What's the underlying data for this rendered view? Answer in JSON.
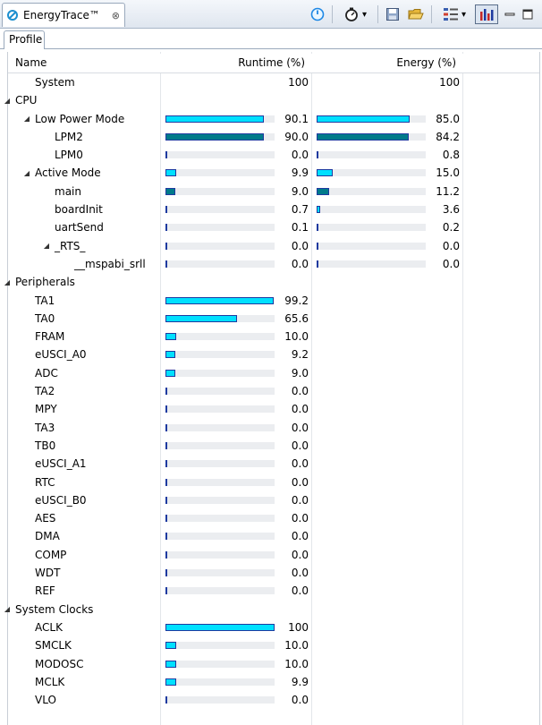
{
  "view": {
    "title": "EnergyTrace™",
    "close_glyph": "⊗",
    "subtab": "Profile"
  },
  "toolbar": {
    "icons": [
      "power-icon",
      "stopwatch-icon",
      "save-icon",
      "open-folder-icon",
      "layout-icon",
      "chart-toggle-icon",
      "minimize-icon",
      "maximize-icon"
    ],
    "dropdown_glyph": "▾"
  },
  "columns": {
    "name": "Name",
    "runtime": "Runtime (%)",
    "energy": "Energy (%)"
  },
  "rows": [
    {
      "name": "System",
      "indent": 1,
      "twisty": "",
      "runtime": "100",
      "runtime_bar": null,
      "energy": "100",
      "energy_bar": null
    },
    {
      "name": "CPU",
      "indent": 0,
      "twisty": "◢",
      "runtime": "",
      "runtime_bar": null,
      "energy": "",
      "energy_bar": null
    },
    {
      "name": "Low Power Mode",
      "indent": 1,
      "twisty": "◢",
      "runtime": "90.1",
      "runtime_bar": 0.901,
      "runtime_dark": false,
      "energy": "85.0",
      "energy_bar": 0.85,
      "energy_dark": false
    },
    {
      "name": "LPM2",
      "indent": 2,
      "twisty": "",
      "runtime": "90.0",
      "runtime_bar": 0.9,
      "runtime_dark": true,
      "energy": "84.2",
      "energy_bar": 0.842,
      "energy_dark": true
    },
    {
      "name": "LPM0",
      "indent": 2,
      "twisty": "",
      "runtime": "0.0",
      "runtime_bar": 0.0,
      "runtime_dark": false,
      "energy": "0.8",
      "energy_bar": 0.008,
      "energy_dark": false
    },
    {
      "name": "Active Mode",
      "indent": 1,
      "twisty": "◢",
      "runtime": "9.9",
      "runtime_bar": 0.099,
      "runtime_dark": false,
      "energy": "15.0",
      "energy_bar": 0.15,
      "energy_dark": false
    },
    {
      "name": "main",
      "indent": 2,
      "twisty": "",
      "runtime": "9.0",
      "runtime_bar": 0.09,
      "runtime_dark": true,
      "energy": "11.2",
      "energy_bar": 0.112,
      "energy_dark": true
    },
    {
      "name": "boardInit",
      "indent": 2,
      "twisty": "",
      "runtime": "0.7",
      "runtime_bar": 0.007,
      "runtime_dark": false,
      "energy": "3.6",
      "energy_bar": 0.036,
      "energy_dark": false
    },
    {
      "name": "uartSend",
      "indent": 2,
      "twisty": "",
      "runtime": "0.1",
      "runtime_bar": 0.001,
      "runtime_dark": false,
      "energy": "0.2",
      "energy_bar": 0.002,
      "energy_dark": false
    },
    {
      "name": "_RTS_",
      "indent": 2,
      "twisty": "◢",
      "twisty_first": true,
      "runtime": "0.0",
      "runtime_bar": 0.0,
      "runtime_dark": false,
      "energy": "0.0",
      "energy_bar": 0.0,
      "energy_dark": false
    },
    {
      "name": "__mspabi_srll",
      "indent": 3,
      "twisty": "",
      "runtime": "0.0",
      "runtime_bar": 0.0,
      "runtime_dark": false,
      "energy": "0.0",
      "energy_bar": 0.0,
      "energy_dark": false
    },
    {
      "name": "Peripherals",
      "indent": 0,
      "twisty": "◢",
      "runtime": "",
      "runtime_bar": null,
      "energy": "",
      "energy_bar": null
    },
    {
      "name": "TA1",
      "indent": 1,
      "twisty": "",
      "runtime": "99.2",
      "runtime_bar": 0.992,
      "runtime_dark": false,
      "energy": "",
      "energy_bar": null
    },
    {
      "name": "TA0",
      "indent": 1,
      "twisty": "",
      "runtime": "65.6",
      "runtime_bar": 0.656,
      "runtime_dark": false,
      "energy": "",
      "energy_bar": null
    },
    {
      "name": "FRAM",
      "indent": 1,
      "twisty": "",
      "runtime": "10.0",
      "runtime_bar": 0.1,
      "runtime_dark": false,
      "energy": "",
      "energy_bar": null
    },
    {
      "name": "eUSCI_A0",
      "indent": 1,
      "twisty": "",
      "runtime": "9.2",
      "runtime_bar": 0.092,
      "runtime_dark": false,
      "energy": "",
      "energy_bar": null
    },
    {
      "name": "ADC",
      "indent": 1,
      "twisty": "",
      "runtime": "9.0",
      "runtime_bar": 0.09,
      "runtime_dark": false,
      "energy": "",
      "energy_bar": null
    },
    {
      "name": "TA2",
      "indent": 1,
      "twisty": "",
      "runtime": "0.0",
      "runtime_bar": 0.0,
      "runtime_dark": false,
      "energy": "",
      "energy_bar": null
    },
    {
      "name": "MPY",
      "indent": 1,
      "twisty": "",
      "runtime": "0.0",
      "runtime_bar": 0.0,
      "runtime_dark": false,
      "energy": "",
      "energy_bar": null
    },
    {
      "name": "TA3",
      "indent": 1,
      "twisty": "",
      "runtime": "0.0",
      "runtime_bar": 0.0,
      "runtime_dark": false,
      "energy": "",
      "energy_bar": null
    },
    {
      "name": "TB0",
      "indent": 1,
      "twisty": "",
      "runtime": "0.0",
      "runtime_bar": 0.0,
      "runtime_dark": false,
      "energy": "",
      "energy_bar": null
    },
    {
      "name": "eUSCI_A1",
      "indent": 1,
      "twisty": "",
      "runtime": "0.0",
      "runtime_bar": 0.0,
      "runtime_dark": false,
      "energy": "",
      "energy_bar": null
    },
    {
      "name": "RTC",
      "indent": 1,
      "twisty": "",
      "runtime": "0.0",
      "runtime_bar": 0.0,
      "runtime_dark": false,
      "energy": "",
      "energy_bar": null
    },
    {
      "name": "eUSCI_B0",
      "indent": 1,
      "twisty": "",
      "runtime": "0.0",
      "runtime_bar": 0.0,
      "runtime_dark": false,
      "energy": "",
      "energy_bar": null
    },
    {
      "name": "AES",
      "indent": 1,
      "twisty": "",
      "runtime": "0.0",
      "runtime_bar": 0.0,
      "runtime_dark": false,
      "energy": "",
      "energy_bar": null
    },
    {
      "name": "DMA",
      "indent": 1,
      "twisty": "",
      "runtime": "0.0",
      "runtime_bar": 0.0,
      "runtime_dark": false,
      "energy": "",
      "energy_bar": null
    },
    {
      "name": "COMP",
      "indent": 1,
      "twisty": "",
      "runtime": "0.0",
      "runtime_bar": 0.0,
      "runtime_dark": false,
      "energy": "",
      "energy_bar": null
    },
    {
      "name": "WDT",
      "indent": 1,
      "twisty": "",
      "runtime": "0.0",
      "runtime_bar": 0.0,
      "runtime_dark": false,
      "energy": "",
      "energy_bar": null
    },
    {
      "name": "REF",
      "indent": 1,
      "twisty": "",
      "runtime": "0.0",
      "runtime_bar": 0.0,
      "runtime_dark": false,
      "energy": "",
      "energy_bar": null
    },
    {
      "name": "System Clocks",
      "indent": 0,
      "twisty": "◢",
      "runtime": "",
      "runtime_bar": null,
      "energy": "",
      "energy_bar": null
    },
    {
      "name": "ACLK",
      "indent": 1,
      "twisty": "",
      "runtime": "100",
      "runtime_bar": 1.0,
      "runtime_dark": false,
      "energy": "",
      "energy_bar": null
    },
    {
      "name": "SMCLK",
      "indent": 1,
      "twisty": "",
      "runtime": "10.0",
      "runtime_bar": 0.1,
      "runtime_dark": false,
      "energy": "",
      "energy_bar": null
    },
    {
      "name": "MODOSC",
      "indent": 1,
      "twisty": "",
      "runtime": "10.0",
      "runtime_bar": 0.1,
      "runtime_dark": false,
      "energy": "",
      "energy_bar": null
    },
    {
      "name": "MCLK",
      "indent": 1,
      "twisty": "",
      "runtime": "9.9",
      "runtime_bar": 0.099,
      "runtime_dark": false,
      "energy": "",
      "energy_bar": null
    },
    {
      "name": "VLO",
      "indent": 1,
      "twisty": "",
      "runtime": "0.0",
      "runtime_bar": 0.0,
      "runtime_dark": false,
      "energy": "",
      "energy_bar": null
    }
  ],
  "colors": {
    "bar_light": "#00e0ff",
    "bar_dark": "#007a8a",
    "bar_border": "#1e3aa0",
    "track": "#ebedf0"
  }
}
